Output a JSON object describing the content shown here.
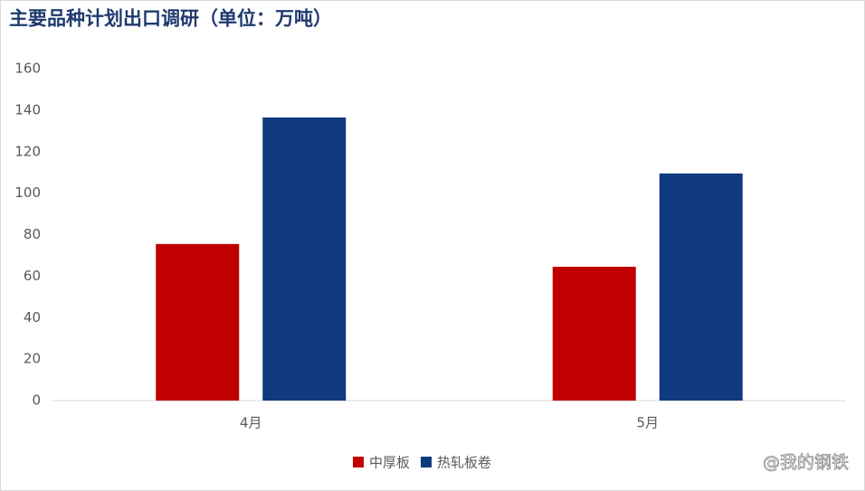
{
  "chart_data": {
    "type": "bar",
    "title": "主要品种计划出口调研（单位：万吨）",
    "categories": [
      "4月",
      "5月"
    ],
    "series": [
      {
        "name": "中厚板",
        "color": "#c00000",
        "values": [
          75.5,
          64.5
        ]
      },
      {
        "name": "热轧板卷",
        "color": "#0f3a80",
        "values": [
          136.5,
          109.5
        ]
      }
    ],
    "ylim": [
      0,
      160
    ],
    "yticks": [
      0,
      20,
      40,
      60,
      80,
      100,
      120,
      140,
      160
    ],
    "grid": false,
    "legend": "bottom",
    "watermark": "@我的钢铁"
  }
}
